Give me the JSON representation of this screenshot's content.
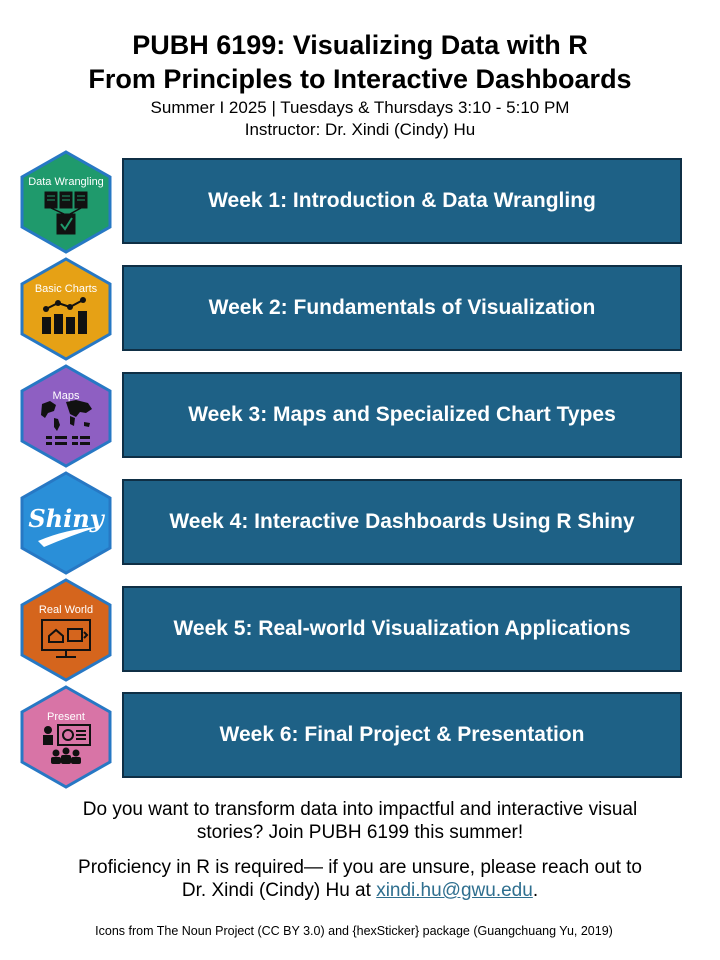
{
  "header": {
    "title_line1": "PUBH 6199: Visualizing Data with R",
    "title_line2": "From Principles to Interactive Dashboards",
    "schedule": "Summer I 2025 | Tuesdays & Thursdays 3:10 - 5:10 PM",
    "instructor": "Instructor: Dr. Xindi (Cindy) Hu"
  },
  "weeks": [
    {
      "label": "Week 1: Introduction & Data Wrangling",
      "hex_label": "Data Wrangling",
      "hex_color": "#1f9a6c",
      "icon": "data-wrangling-icon"
    },
    {
      "label": "Week 2: Fundamentals of Visualization",
      "hex_label": "Basic Charts",
      "hex_color": "#e6a115",
      "icon": "bar-chart-icon"
    },
    {
      "label": "Week 3: Maps and Specialized Chart Types",
      "hex_label": "Maps",
      "hex_color": "#8e5fc2",
      "icon": "world-map-icon"
    },
    {
      "label": "Week 4: Interactive Dashboards Using R Shiny",
      "hex_label": "Shiny",
      "hex_color": "#2a8fd8",
      "icon": "shiny-logo-icon"
    },
    {
      "label": "Week 5: Real-world Visualization Applications",
      "hex_label": "Real World",
      "hex_color": "#d5651d",
      "icon": "monitor-dashboard-icon"
    },
    {
      "label": "Week 6: Final Project & Presentation",
      "hex_label": "Present",
      "hex_color": "#d874a6",
      "icon": "presentation-icon"
    }
  ],
  "pitch": {
    "line1": "Do you want to transform data into impactful and interactive visual",
    "line2": "stories? Join PUBH 6199 this summer!"
  },
  "requirement": {
    "line1": "Proficiency in R is required— if you are unsure, please reach out to",
    "line2_prefix": "Dr. Xindi (Cindy) Hu at ",
    "email": "xindi.hu@gwu.edu",
    "line2_suffix": "."
  },
  "credit": "Icons from The Noun Project (CC BY 3.0) and {hexSticker} package (Guangchuang Yu, 2019)",
  "colors": {
    "box_fill": "#1e6186",
    "box_border": "#0f2f45",
    "hex_border": "#2778c4",
    "link": "#2f6f8f"
  }
}
